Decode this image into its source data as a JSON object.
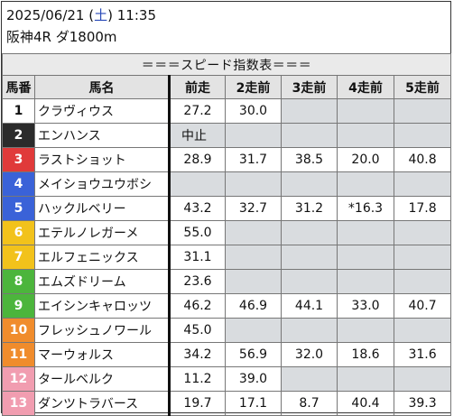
{
  "header": {
    "date": "2025/06/21",
    "dow_open": "(",
    "dow": "土",
    "dow_close": ")",
    "time": "11:35",
    "race": "阪神4R ダ1800m"
  },
  "banner": "＝＝＝スピード指数表＝＝＝",
  "columns": [
    "馬番",
    "馬名",
    "前走",
    "2走前",
    "3走前",
    "4走前",
    "5走前"
  ],
  "horses": [
    {
      "num": "1",
      "name": "クラヴィウス",
      "color": "#ffffff",
      "fg": "#111111",
      "runs": [
        "27.2",
        "30.0",
        "",
        "",
        ""
      ]
    },
    {
      "num": "2",
      "name": "エンハンス",
      "color": "#2b2b2b",
      "fg": "#ffffff",
      "runs": [
        "中止",
        "",
        "",
        "",
        ""
      ]
    },
    {
      "num": "3",
      "name": "ラストショット",
      "color": "#e03a3a",
      "fg": "#ffffff",
      "runs": [
        "28.9",
        "31.7",
        "38.5",
        "20.0",
        "40.8"
      ]
    },
    {
      "num": "4",
      "name": "メイショウユウボシ",
      "color": "#3a62d8",
      "fg": "#ffffff",
      "runs": [
        "",
        "",
        "",
        "",
        ""
      ]
    },
    {
      "num": "5",
      "name": "ハックルベリー",
      "color": "#3a62d8",
      "fg": "#ffffff",
      "runs": [
        "43.2",
        "32.7",
        "31.2",
        "*16.3",
        "17.8"
      ]
    },
    {
      "num": "6",
      "name": "エテルノレガーメ",
      "color": "#f2c21b",
      "fg": "#ffffff",
      "runs": [
        "55.0",
        "",
        "",
        "",
        ""
      ]
    },
    {
      "num": "7",
      "name": "エルフェニックス",
      "color": "#f2c21b",
      "fg": "#ffffff",
      "runs": [
        "31.1",
        "",
        "",
        "",
        ""
      ]
    },
    {
      "num": "8",
      "name": "エムズドリーム",
      "color": "#4cb53c",
      "fg": "#ffffff",
      "runs": [
        "23.6",
        "",
        "",
        "",
        ""
      ]
    },
    {
      "num": "9",
      "name": "エイシンキャロッツ",
      "color": "#4cb53c",
      "fg": "#ffffff",
      "runs": [
        "46.2",
        "46.9",
        "44.1",
        "33.0",
        "40.7"
      ]
    },
    {
      "num": "10",
      "name": "フレッシュノワール",
      "color": "#f08c2c",
      "fg": "#ffffff",
      "runs": [
        "45.0",
        "",
        "",
        "",
        ""
      ]
    },
    {
      "num": "11",
      "name": "マーウォルス",
      "color": "#f08c2c",
      "fg": "#ffffff",
      "runs": [
        "34.2",
        "56.9",
        "32.0",
        "18.6",
        "31.6"
      ]
    },
    {
      "num": "12",
      "name": "タールベルク",
      "color": "#f19db0",
      "fg": "#ffffff",
      "runs": [
        "11.2",
        "39.0",
        "",
        "",
        ""
      ]
    },
    {
      "num": "13",
      "name": "ダンツトラバース",
      "color": "#f19db0",
      "fg": "#ffffff",
      "runs": [
        "19.7",
        "17.1",
        "8.7",
        "40.4",
        "39.3"
      ]
    }
  ],
  "colors": {
    "empty_cell": "#d9dcdf",
    "header_bg": "#e3e3e3",
    "dow_blue": "#2a4bb8"
  }
}
